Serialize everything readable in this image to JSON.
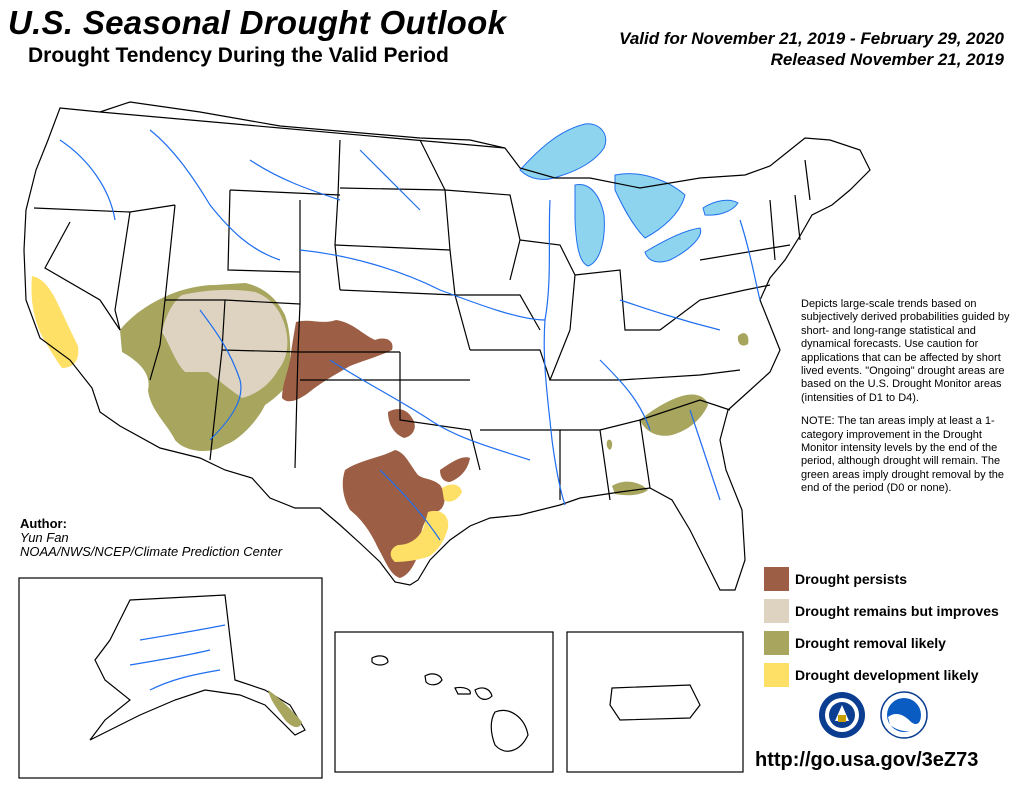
{
  "header": {
    "title": "U.S. Seasonal Drought Outlook",
    "subtitle": "Drought Tendency During the Valid Period",
    "valid": "Valid for November 21, 2019 - February 29, 2020",
    "released": "Released November 21, 2019"
  },
  "description": {
    "p1": "Depicts large-scale trends based on subjectively derived probabilities guided by short- and long-range statistical and dynamical forecasts. Use caution for applications that can be affected by short lived events. \"Ongoing\" drought areas are based on the U.S. Drought Monitor areas (intensities of D1 to D4).",
    "p2": "NOTE: The tan areas imply at least a 1-category improvement in the Drought Monitor intensity levels by the end of the period, although drought will remain. The green areas imply drought removal by the end of the period (D0 or none)."
  },
  "author": {
    "label": "Author:",
    "name": "Yun Fan",
    "org": "NOAA/NWS/NCEP/Climate Prediction Center"
  },
  "legend": [
    {
      "label": "Drought persists",
      "color": "#9c5f45"
    },
    {
      "label": "Drought remains but improves",
      "color": "#ddd3c0"
    },
    {
      "label": "Drought removal likely",
      "color": "#a8a55f"
    },
    {
      "label": "Drought development likely",
      "color": "#ffe066"
    }
  ],
  "colors": {
    "water": "#8fd4ee",
    "river": "#1f6ff0",
    "border": "#000000"
  },
  "url": "http://go.usa.gov/3eZ73",
  "logos": [
    "nws-logo-icon",
    "noaa-logo-icon"
  ]
}
